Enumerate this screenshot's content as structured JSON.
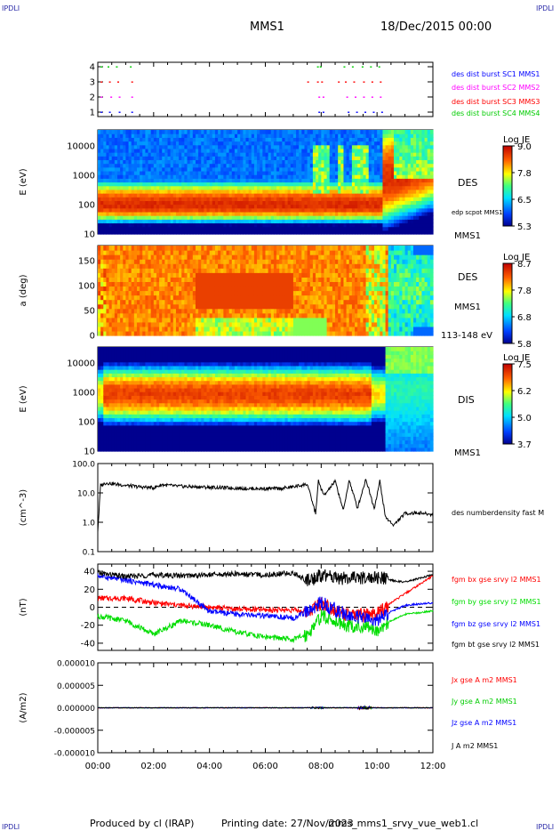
{
  "header": {
    "corner_tl": "IPDLI",
    "corner_tr": "IPDLI",
    "corner_bl": "IPDLI",
    "corner_br": "IPDLI",
    "mission": "MMS1",
    "date": "18/Dec/2015 00:00"
  },
  "footer": {
    "produced": "Produced by cl (IRAP)",
    "printing": "Printing date: 27/Nov/2023",
    "file": "mms_mms1_srvy_vue_web1.cl"
  },
  "colors": {
    "mms1": "#0000ff",
    "mms2": "#ff00ff",
    "mms3": "#ff0000",
    "mms4": "#00cc00",
    "bx": "#ff0000",
    "by": "#00dd00",
    "bz": "#0000ff",
    "bt": "#000000"
  },
  "chart_data": [
    {
      "type": "scatter",
      "id": "burst",
      "y_ticks": [
        "1",
        "2",
        "3",
        "4"
      ],
      "labels": [
        "des dist burst SC1 MMS1",
        "des dist burst SC2 MMS2",
        "des dist burst SC3 MMS3",
        "des dist burst SC4 MMS4"
      ],
      "rows": [
        {
          "y": 4,
          "hours": [
            0.1,
            0.35,
            0.65,
            1.15,
            7.85,
            7.95,
            8.8,
            9.1,
            9.45,
            9.75,
            10.05
          ]
        },
        {
          "y": 3,
          "hours": [
            0.1,
            0.4,
            0.7,
            1.2,
            7.5,
            7.85,
            8.0,
            8.6,
            8.85,
            9.15,
            9.5,
            9.8,
            10.1
          ]
        },
        {
          "y": 2,
          "hours": [
            0.1,
            0.45,
            0.75,
            1.2,
            7.9,
            8.05,
            8.9,
            9.2,
            9.5,
            9.8,
            10.1
          ]
        },
        {
          "y": 1,
          "hours": [
            0.1,
            0.4,
            0.75,
            1.2,
            7.9,
            8.05,
            8.95,
            9.25,
            9.55,
            9.85,
            10.15
          ]
        }
      ]
    },
    {
      "type": "heatmap",
      "id": "des_energy",
      "ylabel": "E (eV)",
      "y_ticks": [
        "10",
        "100",
        "1000",
        "10000"
      ],
      "right_labels": [
        "DES",
        "edp scpot MMS1",
        "MMS1"
      ],
      "colorbar": {
        "title": "Log JE",
        "ticks": [
          "9.0",
          "7.8",
          "6.5",
          "5.3"
        ]
      }
    },
    {
      "type": "heatmap",
      "id": "des_pitch",
      "ylabel": "a (deg)",
      "y_ticks": [
        "0",
        "50",
        "100",
        "150"
      ],
      "right_labels": [
        "DES",
        "MMS1",
        "113-148 eV"
      ],
      "colorbar": {
        "title": "Log JE",
        "ticks": [
          "8.7",
          "7.8",
          "6.8",
          "5.8"
        ]
      }
    },
    {
      "type": "heatmap",
      "id": "dis_energy",
      "ylabel": "E (eV)",
      "y_ticks": [
        "10",
        "100",
        "1000",
        "10000"
      ],
      "right_labels": [
        "DIS",
        "MMS1"
      ],
      "colorbar": {
        "title": "Log JE",
        "ticks": [
          "7.5",
          "6.2",
          "5.0",
          "3.7"
        ]
      }
    },
    {
      "type": "line",
      "id": "density",
      "ylabel": "(cm^-3)",
      "y_ticks": [
        "0.1",
        "1.0",
        "10.0",
        "100.0"
      ],
      "series": [
        {
          "name": "des numberdensity fast M",
          "x": [
            0,
            0.1,
            0.3,
            0.6,
            1.0,
            1.5,
            2.0,
            2.3,
            2.8,
            3.5,
            4.5,
            5.5,
            6.5,
            7.0,
            7.5,
            7.8,
            7.9,
            8.1,
            8.5,
            8.8,
            9.0,
            9.3,
            9.6,
            9.9,
            10.1,
            10.3,
            10.6,
            11.0,
            11.5,
            12.0
          ],
          "y": [
            0.5,
            18,
            22,
            20,
            18,
            16,
            15,
            19,
            17,
            16,
            15,
            14,
            14,
            16,
            20,
            2.0,
            25,
            8,
            25,
            2.5,
            28,
            3,
            30,
            3,
            25,
            1.5,
            0.8,
            2.0,
            2.1,
            1.8
          ]
        }
      ]
    },
    {
      "type": "line",
      "id": "magnetic",
      "ylabel": "(nT)",
      "y_ticks": [
        "-40",
        "-20",
        "0",
        "20",
        "40"
      ],
      "ylim": [
        -48,
        48
      ],
      "series": [
        {
          "name": "fgm bx gse srvy l2 MMS1",
          "x": [
            0,
            1,
            2,
            3,
            4,
            5,
            6,
            7,
            7.5,
            8,
            9,
            10,
            10.5,
            11,
            12
          ],
          "y": [
            10,
            10,
            5,
            2,
            0,
            -2,
            -3,
            -3,
            -5,
            5,
            -10,
            -8,
            5,
            15,
            35
          ]
        },
        {
          "name": "fgm by gse srvy l2 MMS1",
          "x": [
            0,
            1,
            2,
            3,
            4,
            5,
            6,
            7,
            7.5,
            8,
            9,
            10,
            10.5,
            11,
            12
          ],
          "y": [
            -10,
            -15,
            -30,
            -15,
            -20,
            -28,
            -33,
            -36,
            -30,
            -10,
            -20,
            -25,
            -15,
            -8,
            -4
          ]
        },
        {
          "name": "fgm bz gse srvy l2 MMS1",
          "x": [
            0,
            1,
            2,
            3,
            4,
            5,
            6,
            7,
            7.5,
            8,
            9,
            10,
            10.5,
            11,
            12
          ],
          "y": [
            35,
            30,
            25,
            20,
            -5,
            -8,
            -10,
            -12,
            -5,
            5,
            -10,
            -15,
            -5,
            2,
            5
          ]
        },
        {
          "name": "fgm bt gse srvy l2 MMS1",
          "x": [
            0,
            1,
            2,
            3,
            4,
            5,
            6,
            7,
            7.5,
            8,
            9,
            10,
            10.5,
            11,
            12
          ],
          "y": [
            38,
            34,
            36,
            35,
            36,
            37,
            36,
            38,
            30,
            35,
            32,
            33,
            30,
            28,
            36
          ]
        }
      ]
    },
    {
      "type": "line",
      "id": "current",
      "ylabel": "(A/m2)",
      "y_ticks": [
        "-0.000010",
        "-0.000005",
        "0.000000",
        "0.000005",
        "0.000010"
      ],
      "ylim": [
        -1e-05,
        1e-05
      ],
      "series": [
        {
          "name": "Jx gse A m2 MMS1"
        },
        {
          "name": "Jy gse A m2 MMS1"
        },
        {
          "name": "Jz gse A m2 MMS1"
        },
        {
          "name": "J A m2 MMS1"
        }
      ]
    }
  ],
  "x_axis": {
    "ticks": [
      "00:00",
      "02:00",
      "04:00",
      "06:00",
      "08:00",
      "10:00",
      "12:00"
    ]
  }
}
